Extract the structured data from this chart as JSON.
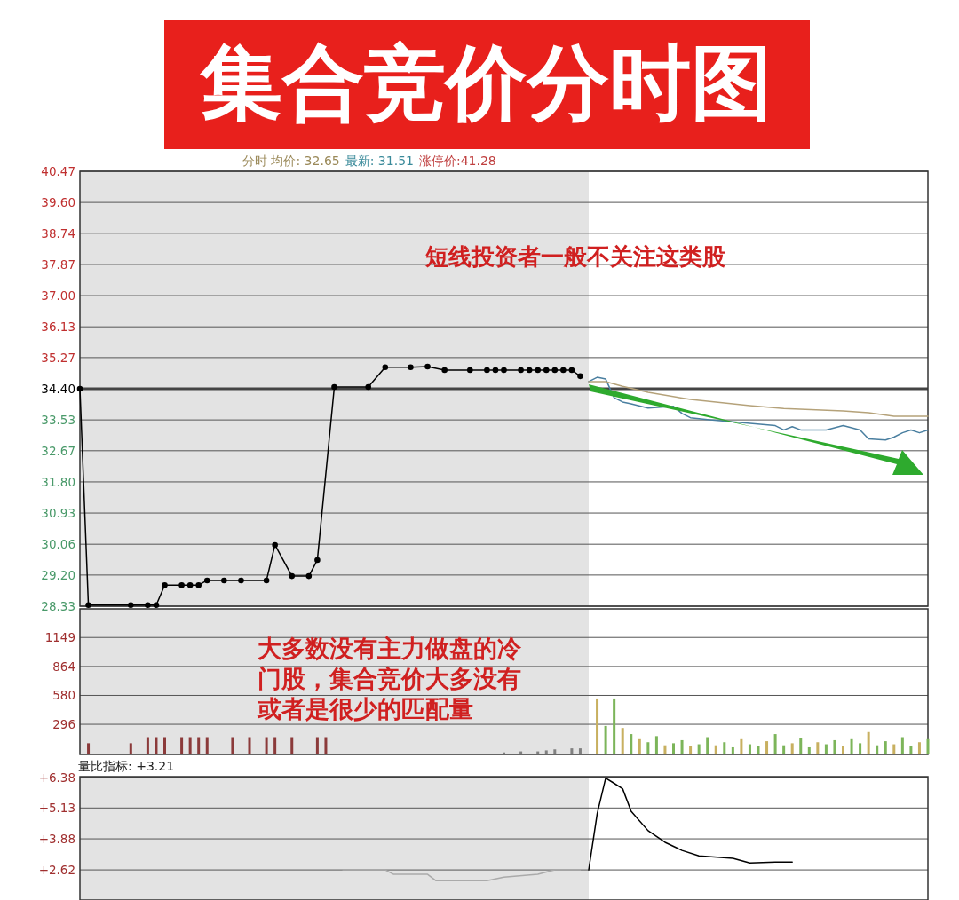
{
  "chart_data": [
    {
      "type": "line",
      "title": "集合竞价分时图",
      "annotations": [
        "分时 均价: 32.65",
        "最新: 31.51",
        "涨停价:41.28",
        "短线投资者一般不关注这类股"
      ],
      "categories": [
        null,
        null,
        null,
        null,
        null,
        null,
        null,
        null,
        null,
        null,
        null,
        null,
        null,
        null,
        null,
        null,
        null,
        null,
        null,
        null,
        null,
        null,
        null,
        null,
        null,
        null,
        null,
        null,
        null,
        null,
        null,
        null,
        null,
        null,
        null,
        null,
        null,
        null,
        null,
        null,
        null,
        null,
        null,
        null,
        null,
        null,
        null,
        null,
        null,
        null,
        null,
        null,
        null,
        null,
        null,
        null,
        null,
        null,
        null,
        null,
        null,
        null,
        null,
        null,
        null,
        null,
        null,
        null,
        null,
        null,
        null,
        null,
        null,
        null,
        null,
        null,
        null,
        null,
        null,
        null,
        null,
        null,
        null,
        null,
        null,
        null,
        null,
        null,
        null,
        null,
        null,
        null,
        null,
        null,
        null,
        null,
        null,
        null,
        null,
        null,
        null
      ],
      "ylim": [
        28.33,
        40.47
      ],
      "yticks": [
        28.33,
        {
          "value": 29.2,
          "label": "29.20"
        },
        30.06,
        30.93,
        {
          "value": 31.8,
          "label": "31.80"
        },
        32.67,
        33.53,
        {
          "value": 34.4,
          "label": "34.40"
        },
        35.27,
        36.13,
        {
          "value": 37.0,
          "label": "37.00"
        },
        37.87,
        38.74,
        {
          "value": 39.6,
          "label": "39.60"
        },
        40.47
      ],
      "tick_labels": "y",
      "grid": "y",
      "ref_lines": [
        {
          "axis": "y",
          "value": 34.4,
          "color": "#444444"
        }
      ],
      "series": [
        {
          "color": "#000000",
          "marker": "circle",
          "values": [
            34.4,
            28.36,
            null,
            null,
            null,
            null,
            28.36,
            null,
            28.36,
            28.36,
            28.92,
            null,
            28.92,
            28.92,
            28.92,
            29.05,
            null,
            29.05,
            null,
            29.05,
            null,
            null,
            29.05,
            30.04,
            null,
            29.17,
            null,
            29.17,
            29.62,
            null,
            34.45,
            null,
            null,
            null,
            34.45,
            null,
            35.0,
            null,
            null,
            35.0,
            null,
            35.02,
            null,
            34.92,
            null,
            null,
            34.92,
            null,
            34.92,
            34.92,
            34.92,
            null,
            34.92,
            34.92,
            34.92,
            34.92,
            34.92,
            34.92,
            34.92,
            34.75,
            null,
            null,
            null,
            null,
            null,
            null,
            null,
            null,
            null,
            null,
            null,
            null,
            null,
            null,
            null,
            null,
            null,
            null,
            null,
            null,
            null,
            null,
            null,
            null,
            null,
            null,
            null,
            null,
            null,
            null,
            null,
            null,
            null,
            null,
            null,
            null,
            null,
            null,
            null,
            null,
            null
          ]
        },
        {
          "color": "#4a7fa0",
          "values": [
            null,
            null,
            null,
            null,
            null,
            null,
            null,
            null,
            null,
            null,
            null,
            null,
            null,
            null,
            null,
            null,
            null,
            null,
            null,
            null,
            null,
            null,
            null,
            null,
            null,
            null,
            null,
            null,
            null,
            null,
            null,
            null,
            null,
            null,
            null,
            null,
            null,
            null,
            null,
            null,
            null,
            null,
            null,
            null,
            null,
            null,
            null,
            null,
            null,
            null,
            null,
            null,
            null,
            null,
            null,
            null,
            null,
            null,
            null,
            null,
            34.6,
            34.72,
            34.67,
            34.15,
            34.03,
            33.98,
            null,
            33.86,
            null,
            null,
            33.91,
            33.71,
            33.59,
            null,
            33.54,
            null,
            null,
            null,
            null,
            null,
            null,
            null,
            33.37,
            33.25,
            33.34,
            33.25,
            null,
            null,
            33.25,
            null,
            33.37,
            null,
            33.25,
            33.0,
            null,
            32.97,
            33.05,
            33.17,
            33.25,
            33.17,
            33.25
          ]
        },
        {
          "color": "#b5a27a",
          "values": [
            null,
            null,
            null,
            null,
            null,
            null,
            null,
            null,
            null,
            null,
            null,
            null,
            null,
            null,
            null,
            null,
            null,
            null,
            null,
            null,
            null,
            null,
            null,
            null,
            null,
            null,
            null,
            null,
            null,
            null,
            null,
            null,
            null,
            null,
            null,
            null,
            null,
            null,
            null,
            null,
            null,
            null,
            null,
            null,
            null,
            null,
            null,
            null,
            null,
            null,
            null,
            null,
            null,
            null,
            null,
            null,
            null,
            null,
            null,
            null,
            34.6,
            null,
            34.6,
            null,
            34.47,
            null,
            null,
            34.3,
            null,
            null,
            null,
            null,
            34.1,
            null,
            null,
            null,
            null,
            null,
            null,
            33.93,
            null,
            null,
            null,
            33.85,
            null,
            null,
            null,
            null,
            null,
            null,
            33.78,
            null,
            null,
            33.73,
            null,
            null,
            33.63,
            null,
            null,
            null,
            33.63
          ]
        }
      ]
    },
    {
      "type": "bar",
      "annotations": [
        "大多数没有主力做盘的冷门股，集合竞价大多没有或者是很少的匹配量"
      ],
      "categories": [
        null,
        null,
        null,
        null,
        null,
        null,
        null,
        null,
        null,
        null,
        null,
        null,
        null,
        null,
        null,
        null,
        null,
        null,
        null,
        null,
        null,
        null,
        null,
        null,
        null,
        null,
        null,
        null,
        null,
        null,
        null,
        null,
        null,
        null,
        null,
        null,
        null,
        null,
        null,
        null,
        null,
        null,
        null,
        null,
        null,
        null,
        null,
        null,
        null,
        null,
        null,
        null,
        null,
        null,
        null,
        null,
        null,
        null,
        null,
        null,
        null,
        null,
        null,
        null,
        null,
        null,
        null,
        null,
        null,
        null,
        null,
        null,
        null,
        null,
        null,
        null,
        null,
        null,
        null,
        null,
        null,
        null,
        null,
        null,
        null,
        null,
        null,
        null,
        null,
        null,
        null,
        null,
        null,
        null,
        null,
        null,
        null,
        null,
        null,
        null,
        null
      ],
      "ylim": [
        0,
        1430
      ],
      "yticks": [
        296,
        580,
        864,
        1149
      ],
      "tick_labels": "y",
      "grid": "y",
      "series": [
        {
          "color": "#8b3a3a",
          "values": [
            null,
            110,
            null,
            null,
            null,
            null,
            110,
            null,
            170,
            170,
            170,
            null,
            170,
            170,
            170,
            170,
            null,
            null,
            170,
            null,
            170,
            null,
            170,
            170,
            null,
            170,
            null,
            null,
            170,
            170,
            null,
            null,
            null,
            null,
            null,
            null,
            null,
            null,
            null,
            null,
            null,
            null,
            null,
            null,
            null,
            null,
            null,
            null,
            null,
            null,
            null,
            null,
            null,
            null,
            null,
            null,
            null,
            null,
            null,
            null,
            null,
            null,
            null,
            null,
            null,
            null,
            null,
            null,
            null,
            null,
            null,
            null,
            null,
            null,
            null,
            null,
            null,
            null,
            null,
            null,
            null,
            null,
            null,
            null,
            null,
            null,
            null,
            null,
            null,
            null,
            null,
            null,
            null,
            null,
            null,
            null,
            null,
            null,
            null,
            null,
            null
          ]
        },
        {
          "color": "#808080",
          "values": [
            null,
            null,
            null,
            null,
            null,
            null,
            null,
            null,
            null,
            null,
            null,
            null,
            null,
            null,
            null,
            null,
            null,
            null,
            null,
            null,
            null,
            null,
            null,
            null,
            null,
            null,
            null,
            null,
            null,
            null,
            null,
            null,
            null,
            null,
            null,
            null,
            null,
            null,
            null,
            null,
            null,
            null,
            null,
            null,
            null,
            null,
            null,
            null,
            null,
            null,
            20,
            null,
            30,
            null,
            30,
            40,
            50,
            null,
            60,
            60,
            null,
            null,
            null,
            null,
            null,
            null,
            null,
            null,
            null,
            null,
            null,
            null,
            null,
            null,
            null,
            null,
            null,
            null,
            null,
            null,
            null,
            null,
            null,
            null,
            null,
            null,
            null,
            null,
            null,
            null,
            null,
            null,
            null,
            null,
            null,
            null,
            null,
            null,
            null,
            null,
            null
          ]
        },
        {
          "color": "#7cb55a",
          "values": [
            null,
            null,
            null,
            null,
            null,
            null,
            null,
            null,
            null,
            null,
            null,
            null,
            null,
            null,
            null,
            null,
            null,
            null,
            null,
            null,
            null,
            null,
            null,
            null,
            null,
            null,
            null,
            null,
            null,
            null,
            null,
            null,
            null,
            null,
            null,
            null,
            null,
            null,
            null,
            null,
            null,
            null,
            null,
            null,
            null,
            null,
            null,
            null,
            null,
            null,
            null,
            null,
            null,
            null,
            null,
            null,
            null,
            null,
            null,
            null,
            null,
            null,
            280,
            550,
            null,
            200,
            null,
            120,
            180,
            null,
            110,
            140,
            null,
            100,
            170,
            null,
            120,
            70,
            null,
            100,
            80,
            null,
            200,
            90,
            null,
            160,
            70,
            null,
            100,
            140,
            null,
            150,
            110,
            null,
            90,
            130,
            null,
            170,
            80,
            null,
            150
          ]
        },
        {
          "color": "#c8b060",
          "values": [
            null,
            null,
            null,
            null,
            null,
            null,
            null,
            null,
            null,
            null,
            null,
            null,
            null,
            null,
            null,
            null,
            null,
            null,
            null,
            null,
            null,
            null,
            null,
            null,
            null,
            null,
            null,
            null,
            null,
            null,
            null,
            null,
            null,
            null,
            null,
            null,
            null,
            null,
            null,
            null,
            null,
            null,
            null,
            null,
            null,
            null,
            null,
            null,
            null,
            null,
            null,
            null,
            null,
            null,
            null,
            null,
            null,
            null,
            null,
            null,
            null,
            550,
            null,
            null,
            260,
            null,
            150,
            null,
            null,
            90,
            null,
            null,
            80,
            null,
            null,
            90,
            null,
            null,
            150,
            null,
            null,
            130,
            null,
            null,
            110,
            null,
            null,
            120,
            null,
            null,
            80,
            null,
            null,
            220,
            null,
            null,
            100,
            null,
            null,
            120,
            null
          ]
        }
      ]
    },
    {
      "type": "line",
      "title": "量比指标: +3.21",
      "categories": [
        null,
        null,
        null,
        null,
        null,
        null,
        null,
        null,
        null,
        null,
        null,
        null,
        null,
        null,
        null,
        null,
        null,
        null,
        null,
        null,
        null,
        null,
        null,
        null,
        null,
        null,
        null,
        null,
        null,
        null,
        null,
        null,
        null,
        null,
        null,
        null,
        null,
        null,
        null,
        null,
        null,
        null,
        null,
        null,
        null,
        null,
        null,
        null,
        null,
        null,
        null,
        null,
        null,
        null,
        null,
        null,
        null,
        null,
        null,
        null,
        null,
        null,
        null,
        null,
        null,
        null,
        null,
        null,
        null,
        null,
        null,
        null,
        null,
        null,
        null,
        null,
        null,
        null,
        null,
        null,
        null,
        null,
        null,
        null,
        null,
        null,
        null,
        null,
        null,
        null,
        null,
        null,
        null,
        null,
        null,
        null,
        null,
        null,
        null,
        null,
        null
      ],
      "ylim": [
        1.4,
        6.4
      ],
      "yticks": [
        {
          "value": 2.62,
          "label": "+2.62"
        },
        {
          "value": 3.88,
          "label": "+3.88"
        },
        {
          "value": 5.13,
          "label": "+5.13"
        },
        {
          "value": 6.38,
          "label": "+6.38"
        }
      ],
      "tick_labels": "y",
      "grid": "y",
      "series": [
        {
          "color": "#aaaaaa",
          "values": [
            null,
            null,
            null,
            null,
            null,
            null,
            null,
            null,
            null,
            null,
            null,
            null,
            null,
            null,
            null,
            null,
            null,
            null,
            null,
            null,
            null,
            null,
            null,
            null,
            null,
            null,
            null,
            null,
            null,
            null,
            null,
            2.62,
            null,
            null,
            null,
            null,
            2.62,
            2.44,
            null,
            null,
            null,
            2.44,
            2.18,
            null,
            null,
            null,
            null,
            null,
            2.18,
            null,
            2.33,
            null,
            null,
            null,
            2.44,
            null,
            2.62,
            null,
            null,
            2.62,
            null,
            null,
            null,
            null,
            null,
            null,
            null,
            null,
            null,
            null,
            null,
            null,
            null,
            null,
            null,
            null,
            null,
            null,
            null,
            null,
            null,
            null,
            null,
            null,
            null,
            null,
            null,
            null,
            null,
            null,
            null,
            null,
            null,
            null,
            null,
            null,
            null,
            null,
            null,
            null,
            null
          ]
        },
        {
          "color": "#000000",
          "values": [
            null,
            null,
            null,
            null,
            null,
            null,
            null,
            null,
            null,
            null,
            null,
            null,
            null,
            null,
            null,
            null,
            null,
            null,
            null,
            null,
            null,
            null,
            null,
            null,
            null,
            null,
            null,
            null,
            null,
            null,
            null,
            null,
            null,
            null,
            null,
            null,
            null,
            null,
            null,
            null,
            null,
            null,
            null,
            null,
            null,
            null,
            null,
            null,
            null,
            null,
            null,
            null,
            null,
            null,
            null,
            null,
            null,
            null,
            null,
            null,
            2.62,
            4.9,
            6.34,
            6.13,
            5.91,
            5.0,
            null,
            4.21,
            null,
            3.74,
            null,
            3.41,
            null,
            3.19,
            null,
            null,
            null,
            3.09,
            null,
            2.9,
            null,
            null,
            2.94,
            null,
            2.94,
            null,
            null,
            null,
            null,
            null,
            null,
            null,
            null,
            null,
            null,
            null,
            null,
            null,
            null,
            null,
            null
          ]
        }
      ]
    }
  ]
}
